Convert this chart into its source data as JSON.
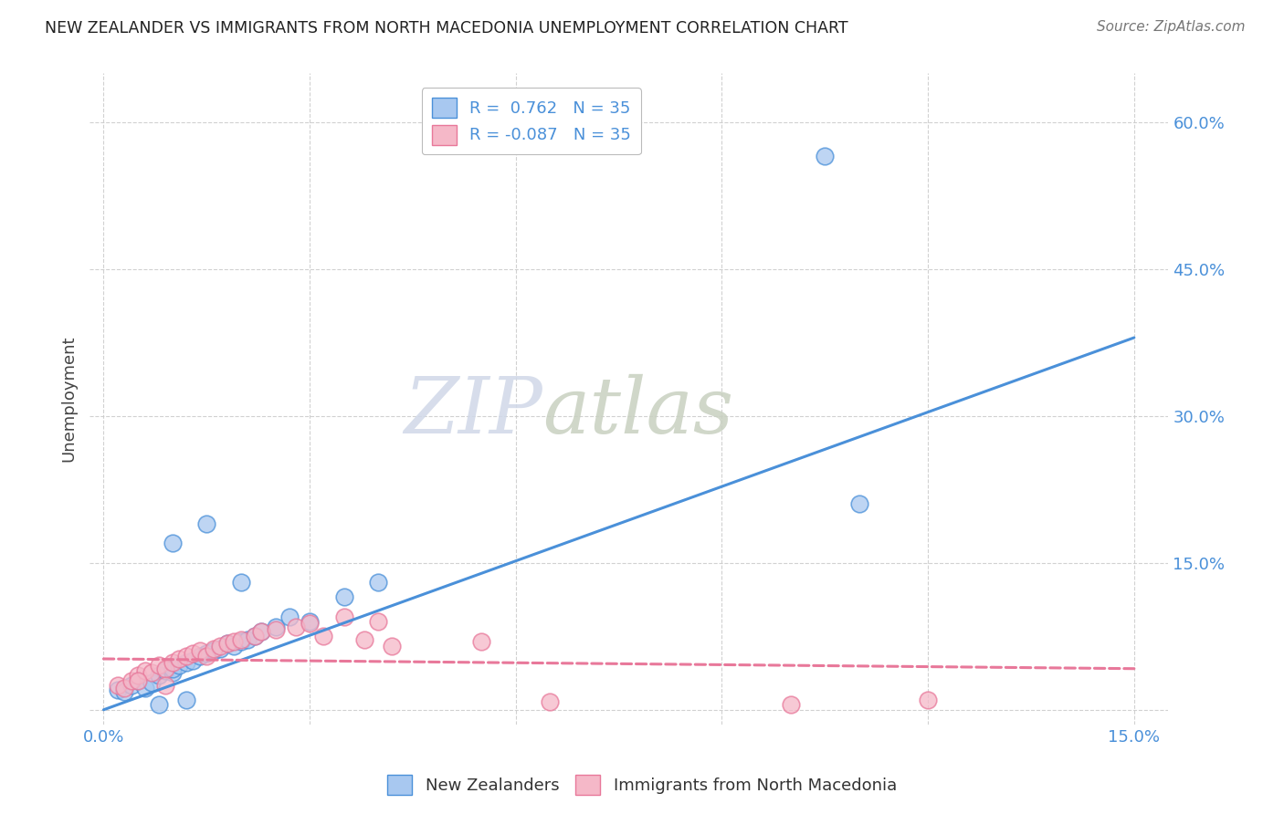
{
  "title": "NEW ZEALANDER VS IMMIGRANTS FROM NORTH MACEDONIA UNEMPLOYMENT CORRELATION CHART",
  "source": "Source: ZipAtlas.com",
  "ylabel": "Unemployment",
  "yticks": [
    0.0,
    0.15,
    0.3,
    0.45,
    0.6
  ],
  "ytick_labels": [
    "",
    "15.0%",
    "30.0%",
    "45.0%",
    "60.0%"
  ],
  "xticks": [
    0.0,
    0.03,
    0.06,
    0.09,
    0.12,
    0.15
  ],
  "xtick_labels": [
    "0.0%",
    "",
    "",
    "",
    "",
    "15.0%"
  ],
  "xlim": [
    -0.002,
    0.155
  ],
  "ylim": [
    -0.015,
    0.65
  ],
  "legend_r1": "R =  0.762   N = 35",
  "legend_r2": "R = -0.087   N = 35",
  "blue_scatter_color": "#A8C8F0",
  "pink_scatter_color": "#F5B8C8",
  "blue_line_color": "#4A90D9",
  "pink_line_color": "#E8789A",
  "nz_scatter_x": [
    0.002,
    0.003,
    0.004,
    0.005,
    0.006,
    0.007,
    0.008,
    0.009,
    0.01,
    0.01,
    0.011,
    0.012,
    0.013,
    0.014,
    0.015,
    0.016,
    0.017,
    0.018,
    0.019,
    0.02,
    0.021,
    0.022,
    0.023,
    0.025,
    0.027,
    0.03,
    0.035,
    0.04,
    0.01,
    0.015,
    0.02,
    0.11,
    0.105,
    0.008,
    0.012
  ],
  "nz_scatter_y": [
    0.02,
    0.018,
    0.025,
    0.03,
    0.022,
    0.028,
    0.035,
    0.04,
    0.038,
    0.042,
    0.045,
    0.048,
    0.05,
    0.055,
    0.058,
    0.06,
    0.062,
    0.068,
    0.065,
    0.07,
    0.072,
    0.075,
    0.08,
    0.085,
    0.095,
    0.09,
    0.115,
    0.13,
    0.17,
    0.19,
    0.13,
    0.21,
    0.565,
    0.005,
    0.01
  ],
  "mk_scatter_x": [
    0.002,
    0.003,
    0.004,
    0.005,
    0.006,
    0.007,
    0.008,
    0.009,
    0.01,
    0.011,
    0.012,
    0.013,
    0.014,
    0.015,
    0.016,
    0.017,
    0.018,
    0.019,
    0.02,
    0.022,
    0.023,
    0.025,
    0.028,
    0.03,
    0.032,
    0.035,
    0.038,
    0.04,
    0.042,
    0.055,
    0.065,
    0.1,
    0.005,
    0.009,
    0.12
  ],
  "mk_scatter_y": [
    0.025,
    0.022,
    0.03,
    0.035,
    0.04,
    0.038,
    0.045,
    0.042,
    0.048,
    0.052,
    0.055,
    0.058,
    0.06,
    0.055,
    0.062,
    0.065,
    0.068,
    0.07,
    0.072,
    0.075,
    0.08,
    0.082,
    0.085,
    0.088,
    0.075,
    0.095,
    0.072,
    0.09,
    0.065,
    0.07,
    0.008,
    0.005,
    0.03,
    0.025,
    0.01
  ],
  "nz_line_x": [
    0.0,
    0.15
  ],
  "nz_line_y": [
    0.0,
    0.38
  ],
  "mk_line_x": [
    0.0,
    0.15
  ],
  "mk_line_y": [
    0.052,
    0.042
  ],
  "watermark_zip": "ZIP",
  "watermark_atlas": "atlas",
  "bg_color": "#FFFFFF",
  "grid_color": "#CCCCCC"
}
